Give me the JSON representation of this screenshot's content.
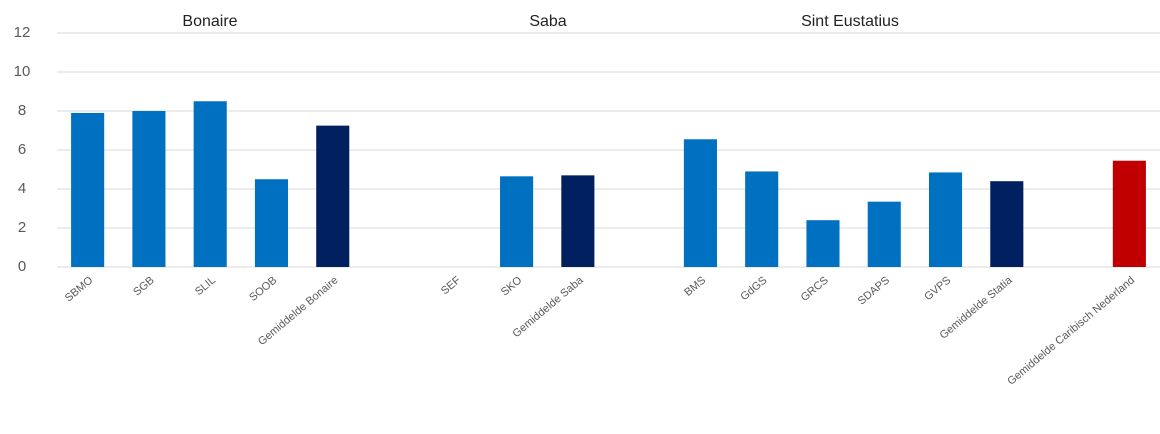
{
  "chart_data": {
    "type": "bar",
    "groups": [
      "Bonaire",
      "Saba",
      "Sint Eustatius"
    ],
    "categories": [
      "SBMO",
      "SGB",
      "SLIL",
      "SOOB",
      "Gemiddelde Bonaire",
      null,
      "SEF",
      "SKO",
      "Gemiddelde Saba",
      null,
      "BMS",
      "GdGS",
      "GRCS",
      "SDAPS",
      "GVPS",
      "Gemiddelde Statia",
      null,
      "Gemiddelde Caribisch Nederland"
    ],
    "values": [
      7.9,
      8.0,
      8.5,
      4.5,
      7.25,
      null,
      null,
      4.65,
      4.7,
      null,
      6.55,
      4.9,
      2.4,
      3.35,
      4.85,
      4.4,
      null,
      5.45
    ],
    "colors": [
      "#0070c0",
      "#0070c0",
      "#0070c0",
      "#0070c0",
      "#002060",
      null,
      "#0070c0",
      "#0070c0",
      "#002060",
      null,
      "#0070c0",
      "#0070c0",
      "#0070c0",
      "#0070c0",
      "#0070c0",
      "#002060",
      null,
      "#c00000"
    ],
    "ylim": [
      0,
      12
    ],
    "yticks": [
      0,
      2,
      4,
      6,
      8,
      10,
      12
    ],
    "grid": true
  }
}
